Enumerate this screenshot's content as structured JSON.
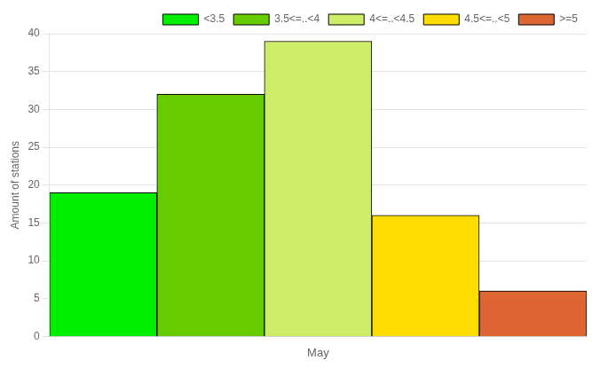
{
  "chart_data": {
    "type": "bar",
    "categories": [
      "May"
    ],
    "series": [
      {
        "name": "<3.5",
        "color": "#00ee00",
        "values": [
          19
        ]
      },
      {
        "name": "3.5<=..<4",
        "color": "#66cc00",
        "values": [
          32
        ]
      },
      {
        "name": "4<=..<4.5",
        "color": "#ccee66",
        "values": [
          39
        ]
      },
      {
        "name": "4.5<=..<5",
        "color": "#ffdd00",
        "values": [
          16
        ]
      },
      {
        "name": ">=5",
        "color": "#dd6633",
        "values": [
          6
        ]
      }
    ],
    "ylabel": "Amount of stations",
    "ylim": [
      0,
      40
    ],
    "yticks": [
      0,
      5,
      10,
      15,
      20,
      25,
      30,
      35,
      40
    ],
    "grid": true,
    "legend": "top-right"
  }
}
